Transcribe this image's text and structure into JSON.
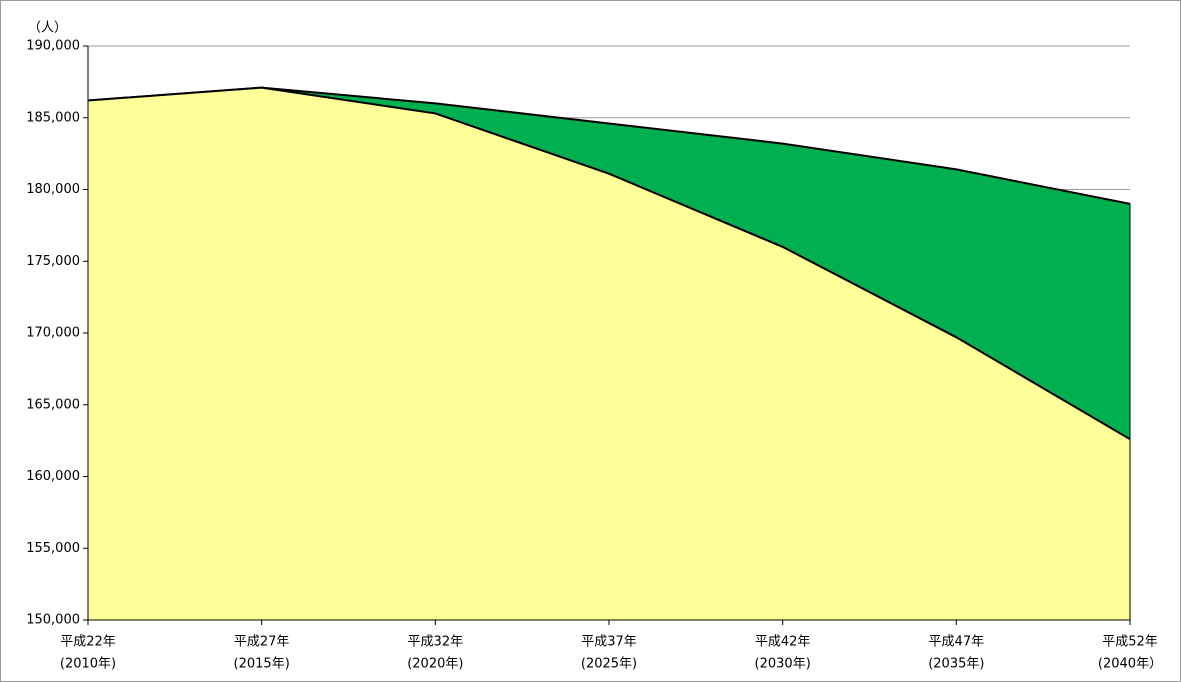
{
  "chart_data": {
    "type": "area",
    "y_axis_label": "（人）",
    "categories": [
      [
        "平成22年",
        "(2010年)"
      ],
      [
        "平成27年",
        "(2015年)"
      ],
      [
        "平成32年",
        "(2020年)"
      ],
      [
        "平成37年",
        "(2025年)"
      ],
      [
        "平成42年",
        "(2030年)"
      ],
      [
        "平成47年",
        "(2035年)"
      ],
      [
        "平成52年",
        "(2040年）"
      ]
    ],
    "series": [
      {
        "color": "#00b050",
        "values": [
          186200,
          187100,
          186000,
          184600,
          183200,
          181400,
          179000
        ]
      },
      {
        "color": "#ffff99",
        "values": [
          186200,
          187100,
          185300,
          181100,
          176000,
          169700,
          162600
        ]
      }
    ],
    "ylim": [
      150000,
      190000
    ],
    "yticks": [
      {
        "value": 150000,
        "label": "150,000"
      },
      {
        "value": 155000,
        "label": "155,000"
      },
      {
        "value": 160000,
        "label": "160,000"
      },
      {
        "value": 165000,
        "label": "165,000"
      },
      {
        "value": 170000,
        "label": "170,000"
      },
      {
        "value": 175000,
        "label": "175,000"
      },
      {
        "value": 180000,
        "label": "180,000"
      },
      {
        "value": 185000,
        "label": "185,000"
      },
      {
        "value": 190000,
        "label": "190,000"
      }
    ],
    "grid": true
  }
}
